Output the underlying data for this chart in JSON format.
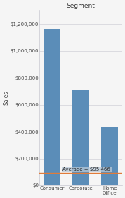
{
  "title": "Segment",
  "categories": [
    "Consumer",
    "Corporate",
    "Home\nOffice"
  ],
  "values": [
    1161000,
    706000,
    430000
  ],
  "bar_color": "#5b8db8",
  "bar_width": 0.6,
  "ylabel": "Sales",
  "ylim": [
    0,
    1300000
  ],
  "yticks": [
    0,
    200000,
    400000,
    600000,
    800000,
    1000000,
    1200000
  ],
  "average_value": 95466,
  "average_label": "Average = $95,466",
  "average_line_color": "#e07b3a",
  "average_label_bg": "#b8c8d8",
  "average_label_alpha": 0.75,
  "grid_color": "#c8c8d0",
  "background_color": "#f5f5f5",
  "title_fontsize": 6.5,
  "axis_label_fontsize": 5.5,
  "tick_fontsize": 5,
  "annotation_fontsize": 5
}
